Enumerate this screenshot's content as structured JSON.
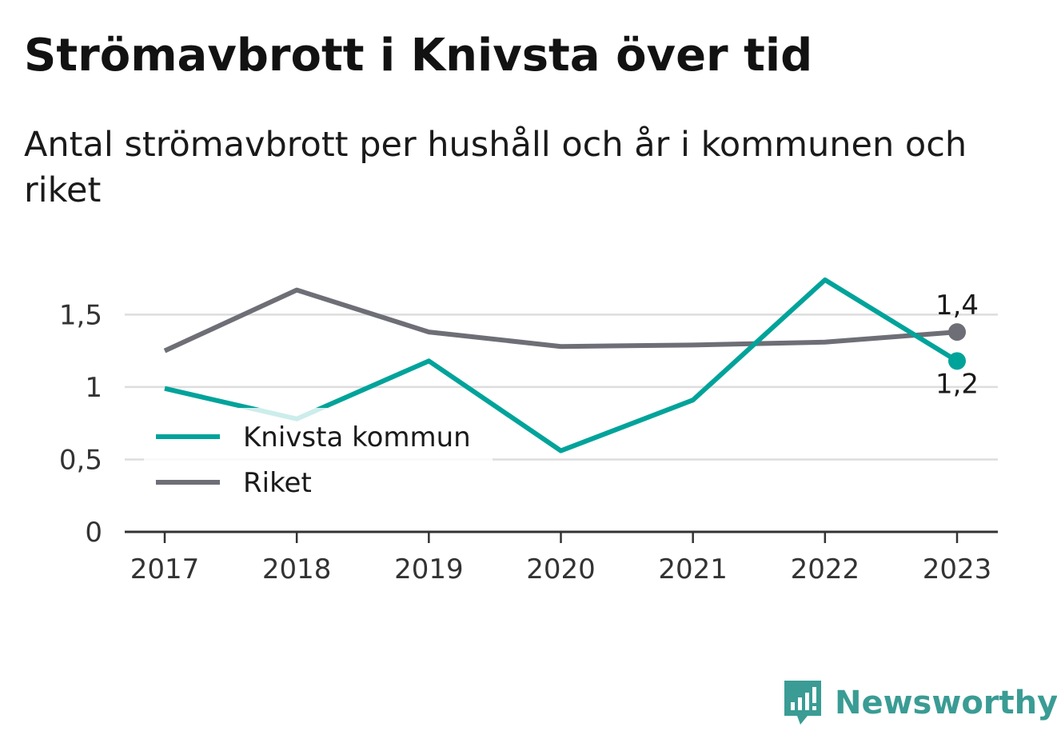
{
  "title": "Strömavbrott i Knivsta över tid",
  "subtitle": "Antal strömavbrott per hushåll och år i kommunen och riket",
  "brand": "Newsworthy",
  "chart_data": {
    "type": "line",
    "x": [
      "2017",
      "2018",
      "2019",
      "2020",
      "2021",
      "2022",
      "2023"
    ],
    "series": [
      {
        "name": "Knivsta kommun",
        "color": "#00a39a",
        "values": [
          0.99,
          0.78,
          1.18,
          0.56,
          0.91,
          1.74,
          1.18
        ],
        "end_label": "1,2"
      },
      {
        "name": "Riket",
        "color": "#6e6e76",
        "values": [
          1.25,
          1.67,
          1.38,
          1.28,
          1.29,
          1.31,
          1.38
        ],
        "end_label": "1,4"
      }
    ],
    "yticks": [
      0,
      0.5,
      1,
      1.5
    ],
    "ytick_labels": [
      "0",
      "0,5",
      "1",
      "1,5"
    ],
    "ylim": [
      0,
      1.85
    ],
    "grid": true,
    "legend": "bottom-left"
  }
}
